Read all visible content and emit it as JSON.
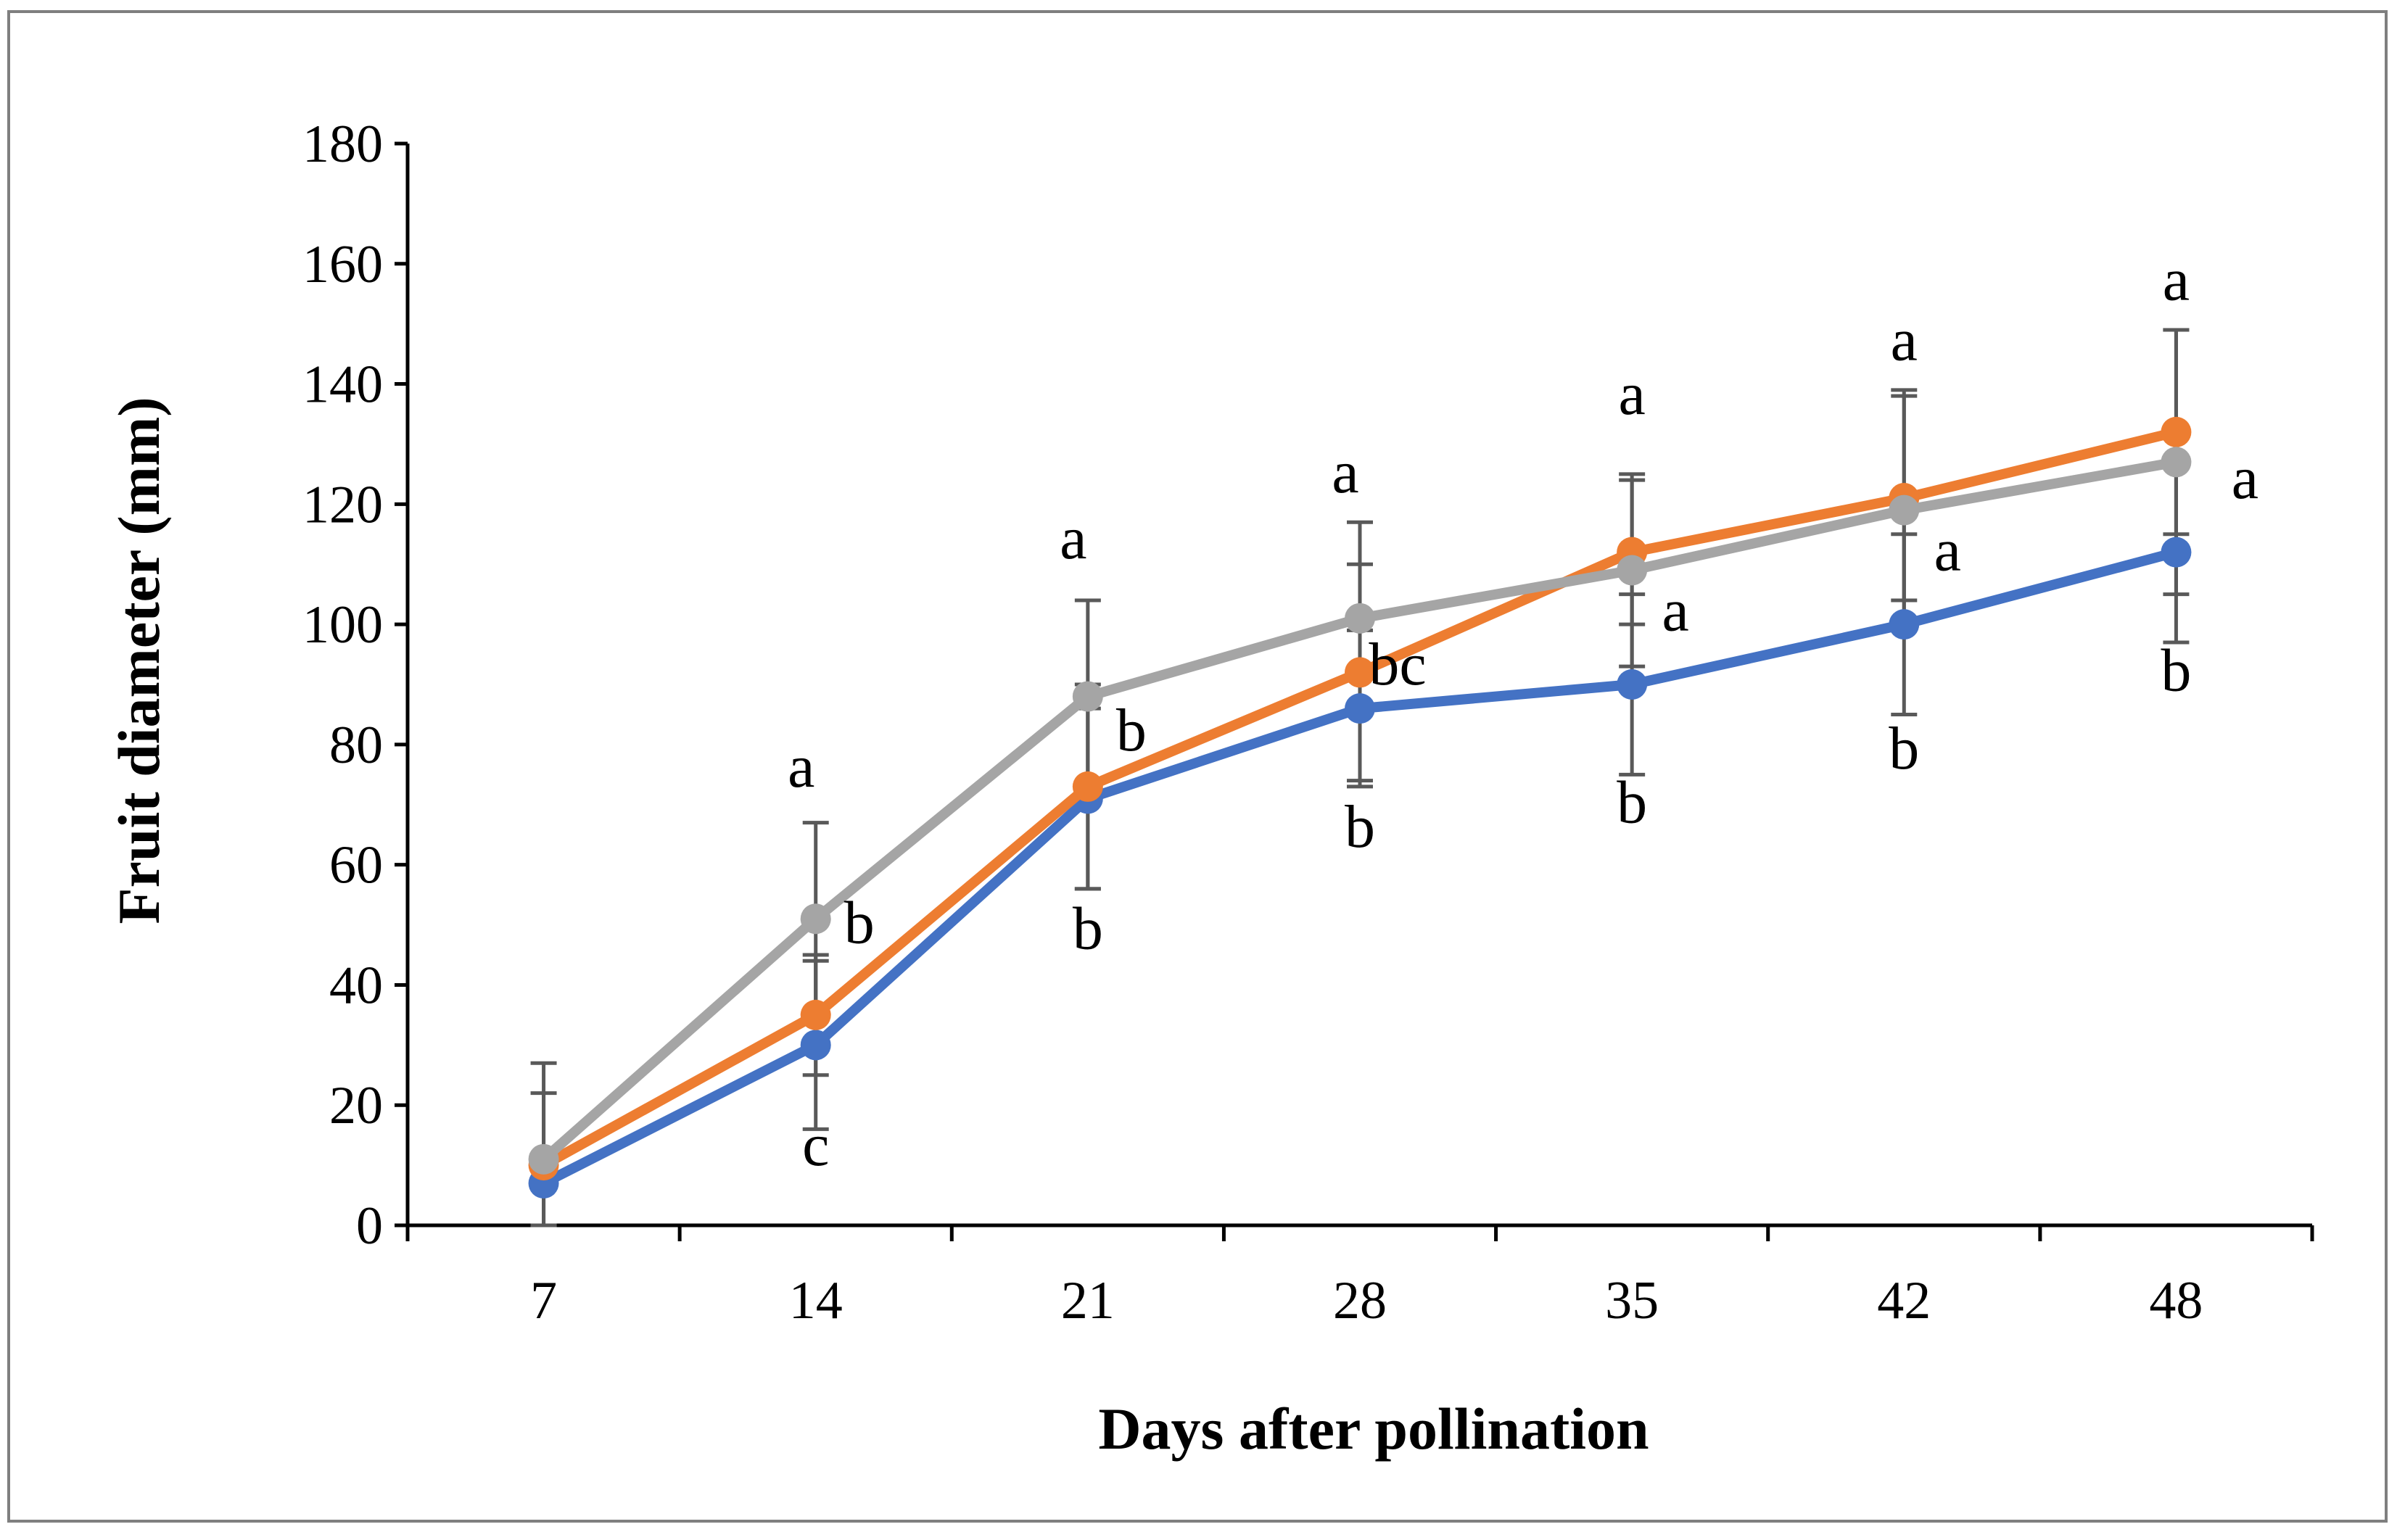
{
  "chart_data": {
    "type": "line",
    "title": "",
    "xlabel": "Days after pollination",
    "ylabel": "Fruit diameter (mm)",
    "categories": [
      "7",
      "14",
      "21",
      "28",
      "35",
      "42",
      "48"
    ],
    "ylim": [
      0,
      180
    ],
    "yticks": [
      0,
      20,
      40,
      60,
      80,
      100,
      120,
      140,
      160,
      180
    ],
    "grid": false,
    "legend": "none",
    "series": [
      {
        "name": "Blue series",
        "color": "#4472c4",
        "values": [
          7,
          30,
          71,
          86,
          90,
          100,
          112
        ],
        "errors": [
          0,
          14,
          15,
          13,
          15,
          15,
          15
        ]
      },
      {
        "name": "Orange series",
        "color": "#ed7d31",
        "values": [
          10,
          35,
          73,
          92,
          112,
          121,
          132
        ],
        "errors": [
          12,
          10,
          17,
          18,
          12,
          17,
          17
        ]
      },
      {
        "name": "Gray series",
        "color": "#a5a5a5",
        "values": [
          11,
          51,
          88,
          101,
          109,
          119,
          127
        ],
        "errors": [
          16,
          16,
          16,
          16,
          16,
          20,
          22
        ]
      }
    ],
    "annotations": [
      {
        "text": "c",
        "x": 1,
        "y": 10
      },
      {
        "text": "b",
        "x": 1,
        "y": 47
      },
      {
        "text": "a",
        "x": 1,
        "y": 73
      },
      {
        "text": "b",
        "x": 2,
        "y": 46
      },
      {
        "text": "b",
        "x": 2,
        "y": 79
      },
      {
        "text": "a",
        "x": 2,
        "y": 111
      },
      {
        "text": "b",
        "x": 3,
        "y": 63
      },
      {
        "text": "bc",
        "x": 3,
        "y": 90
      },
      {
        "text": "a",
        "x": 3,
        "y": 122
      },
      {
        "text": "b",
        "x": 4,
        "y": 67
      },
      {
        "text": "a",
        "x": 4,
        "y": 99
      },
      {
        "text": "a",
        "x": 4,
        "y": 135
      },
      {
        "text": "b",
        "x": 5,
        "y": 76
      },
      {
        "text": "a",
        "x": 5,
        "y": 109
      },
      {
        "text": "a",
        "x": 5,
        "y": 144
      },
      {
        "text": "b",
        "x": 6,
        "y": 89
      },
      {
        "text": "a",
        "x": 6,
        "y": 121
      },
      {
        "text": "a",
        "x": 6,
        "y": 154
      }
    ]
  }
}
